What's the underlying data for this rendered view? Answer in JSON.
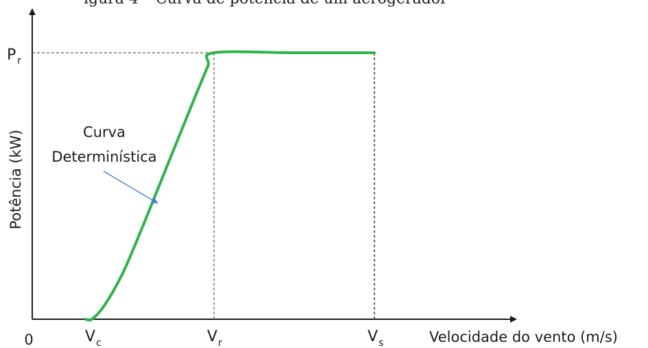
{
  "cropped_caption": "igura 4 – Curva de potência de um aerogerador",
  "chart_data": {
    "type": "line",
    "title": "",
    "xlabel": "Velocidade do vento (m/s)",
    "ylabel": "Potência (kW)",
    "origin_label": "0",
    "grid": false,
    "x_ticks": [
      {
        "key": "vc",
        "main": "V",
        "sub": "c",
        "value": 1.0
      },
      {
        "key": "vr",
        "main": "V",
        "sub": "r",
        "value": 3.0
      },
      {
        "key": "vs",
        "main": "V",
        "sub": "s",
        "value": 5.0
      }
    ],
    "y_ticks": [
      {
        "key": "pr",
        "main": "P",
        "sub": "r",
        "value": 1.0
      }
    ],
    "series": [
      {
        "color": "#2db34a",
        "x": [
          0.9,
          1.0,
          1.2,
          1.5,
          1.8,
          2.1,
          2.4,
          2.7,
          2.9,
          3.0,
          4.0,
          5.0
        ],
        "y": [
          0.0,
          0.0,
          0.05,
          0.17,
          0.33,
          0.5,
          0.67,
          0.84,
          0.95,
          1.0,
          1.0,
          1.0
        ]
      }
    ],
    "annotations": [
      {
        "text_lines": [
          "Curva",
          "Determinística"
        ],
        "arrow_color": "#4a7fd0",
        "points_to_x": 1.8
      }
    ],
    "xlim": [
      0,
      6.0
    ],
    "ylim": [
      0,
      1.1
    ]
  }
}
